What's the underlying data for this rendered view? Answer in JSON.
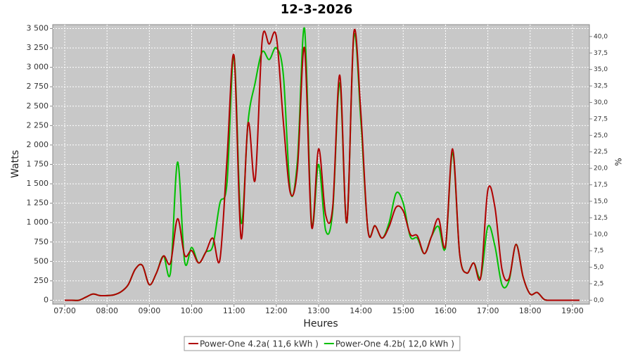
{
  "chart_data": {
    "type": "line",
    "title": "12-3-2026",
    "xlabel": "Heures",
    "ylabel": "Watts",
    "y2label": "%",
    "x": [
      "07:00",
      "07:10",
      "07:20",
      "07:30",
      "07:40",
      "07:50",
      "08:00",
      "08:10",
      "08:20",
      "08:30",
      "08:40",
      "08:50",
      "09:00",
      "09:10",
      "09:20",
      "09:30",
      "09:40",
      "09:50",
      "10:00",
      "10:10",
      "10:20",
      "10:30",
      "10:40",
      "10:50",
      "11:00",
      "11:10",
      "11:20",
      "11:30",
      "11:40",
      "11:50",
      "12:00",
      "12:10",
      "12:20",
      "12:30",
      "12:40",
      "12:50",
      "13:00",
      "13:10",
      "13:20",
      "13:30",
      "13:40",
      "13:50",
      "14:00",
      "14:10",
      "14:20",
      "14:30",
      "14:40",
      "14:50",
      "15:00",
      "15:10",
      "15:20",
      "15:30",
      "15:40",
      "15:50",
      "16:00",
      "16:10",
      "16:20",
      "16:30",
      "16:40",
      "16:50",
      "17:00",
      "17:10",
      "17:20",
      "17:30",
      "17:40",
      "17:50",
      "18:00",
      "18:10",
      "18:20",
      "18:30",
      "18:40",
      "18:50",
      "19:00",
      "19:10"
    ],
    "series": [
      {
        "name": "Power-One 4.2a( 11,6 kWh )",
        "color": "#b00000",
        "values": [
          0,
          0,
          0,
          40,
          80,
          60,
          60,
          70,
          110,
          200,
          400,
          450,
          200,
          350,
          570,
          480,
          1050,
          580,
          640,
          480,
          620,
          800,
          520,
          1800,
          3150,
          800,
          2280,
          1550,
          3350,
          3300,
          3400,
          2300,
          1380,
          1700,
          3250,
          950,
          1950,
          1100,
          1200,
          2900,
          1000,
          3450,
          2400,
          900,
          960,
          800,
          950,
          1200,
          1150,
          850,
          830,
          600,
          820,
          1050,
          700,
          1950,
          600,
          350,
          480,
          300,
          1420,
          1200,
          400,
          280,
          720,
          300,
          80,
          100,
          10,
          0,
          0,
          0,
          0,
          0
        ]
      },
      {
        "name": "Power-One 4.2b( 12,0 kWh )",
        "color": "#00c000",
        "values": [
          0,
          0,
          0,
          40,
          80,
          60,
          60,
          70,
          110,
          200,
          400,
          450,
          200,
          350,
          570,
          360,
          1780,
          500,
          680,
          480,
          620,
          700,
          1250,
          1500,
          3150,
          1000,
          2300,
          2800,
          3200,
          3100,
          3250,
          2900,
          1400,
          1800,
          3500,
          1000,
          1750,
          900,
          1150,
          2800,
          1000,
          3400,
          2300,
          900,
          960,
          800,
          1000,
          1380,
          1250,
          820,
          800,
          600,
          820,
          950,
          680,
          1900,
          600,
          350,
          480,
          300,
          950,
          700,
          200,
          250,
          720,
          300,
          80,
          100,
          10,
          0,
          0,
          0,
          0,
          0
        ]
      }
    ],
    "xlim": [
      "06:43",
      "19:24"
    ],
    "xticks": [
      "07:00",
      "08:00",
      "09:00",
      "10:00",
      "11:00",
      "12:00",
      "13:00",
      "14:00",
      "15:00",
      "16:00",
      "17:00",
      "18:00",
      "19:00"
    ],
    "ylim": [
      -50,
      3550
    ],
    "yticks": [
      0,
      250,
      500,
      750,
      {
        "value": 1000,
        "label": "1 000"
      },
      {
        "value": 1250,
        "label": "1 250"
      },
      {
        "value": 1500,
        "label": "1 500"
      },
      {
        "value": 1750,
        "label": "1 750"
      },
      {
        "value": 2000,
        "label": "2 000"
      },
      {
        "value": 2250,
        "label": "2 250"
      },
      {
        "value": 2500,
        "label": "2 500"
      },
      {
        "value": 2750,
        "label": "2 750"
      },
      {
        "value": 3000,
        "label": "3 000"
      },
      {
        "value": 3250,
        "label": "3 250"
      },
      {
        "value": 3500,
        "label": "3 500"
      }
    ],
    "y2lim": [
      -0.6,
      41.8
    ],
    "y2ticks": [
      {
        "value": 0,
        "label": "0,0"
      },
      {
        "value": 2.5,
        "label": "2,5"
      },
      {
        "value": 5,
        "label": "5,0"
      },
      {
        "value": 7.5,
        "label": "7,5"
      },
      {
        "value": 10,
        "label": "10,0"
      },
      {
        "value": 12.5,
        "label": "12,5"
      },
      {
        "value": 15,
        "label": "15,0"
      },
      {
        "value": 17.5,
        "label": "17,5"
      },
      {
        "value": 20,
        "label": "20,0"
      },
      {
        "value": 22.5,
        "label": "22,5"
      },
      {
        "value": 25,
        "label": "25,0"
      },
      {
        "value": 27.5,
        "label": "27,5"
      },
      {
        "value": 30,
        "label": "30,0"
      },
      {
        "value": 32.5,
        "label": "32,5"
      },
      {
        "value": 35,
        "label": "35,0"
      },
      {
        "value": 37.5,
        "label": "37,5"
      },
      {
        "value": 40,
        "label": "40,0"
      }
    ],
    "grid": true
  }
}
